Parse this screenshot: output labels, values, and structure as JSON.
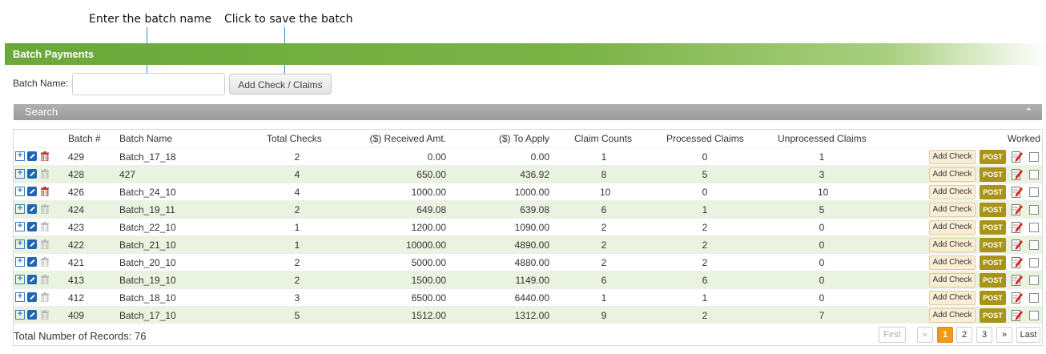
{
  "annotations": {
    "batch_name": "Enter the batch name",
    "save_batch": "Click to save the batch"
  },
  "panel": {
    "title": "Batch Payments",
    "batch_name_label": "Batch Name:",
    "batch_name_value": "",
    "batch_name_placeholder": "",
    "add_button": "Add Check / Claims"
  },
  "search": {
    "title": "Search",
    "toggle_glyph": "⌃"
  },
  "table": {
    "columns": {
      "batch_no": "Batch #",
      "batch_name": "Batch Name",
      "total_checks": "Total Checks",
      "received_amt": "($) Received Amt.",
      "to_apply": "($) To Apply",
      "claim_counts": "Claim Counts",
      "processed_claims": "Processed Claims",
      "unprocessed_claims": "Unprocessed Claims",
      "worked": "Worked"
    },
    "row_actions": {
      "add_check": "Add Check",
      "post": "POST"
    },
    "rows": [
      {
        "batch": "429",
        "name": "Batch_17_18",
        "checks": "2",
        "received": "0.00",
        "apply": "0.00",
        "claims": "1",
        "processed": "0",
        "unprocessed": "1",
        "delete_enabled": true
      },
      {
        "batch": "428",
        "name": "427",
        "checks": "4",
        "received": "650.00",
        "apply": "436.92",
        "claims": "8",
        "processed": "5",
        "unprocessed": "3",
        "delete_enabled": false
      },
      {
        "batch": "426",
        "name": "Batch_24_10",
        "checks": "4",
        "received": "1000.00",
        "apply": "1000.00",
        "claims": "10",
        "processed": "0",
        "unprocessed": "10",
        "delete_enabled": true
      },
      {
        "batch": "424",
        "name": "Batch_19_11",
        "checks": "2",
        "received": "649.08",
        "apply": "639.08",
        "claims": "6",
        "processed": "1",
        "unprocessed": "5",
        "delete_enabled": false
      },
      {
        "batch": "423",
        "name": "Batch_22_10",
        "checks": "1",
        "received": "1200.00",
        "apply": "1090.00",
        "claims": "2",
        "processed": "2",
        "unprocessed": "0",
        "delete_enabled": false
      },
      {
        "batch": "422",
        "name": "Batch_21_10",
        "checks": "1",
        "received": "10000.00",
        "apply": "4890.00",
        "claims": "2",
        "processed": "2",
        "unprocessed": "0",
        "delete_enabled": false
      },
      {
        "batch": "421",
        "name": "Batch_20_10",
        "checks": "2",
        "received": "5000.00",
        "apply": "4880.00",
        "claims": "2",
        "processed": "2",
        "unprocessed": "0",
        "delete_enabled": false
      },
      {
        "batch": "413",
        "name": "Batch_19_10",
        "checks": "2",
        "received": "1500.00",
        "apply": "1149.00",
        "claims": "6",
        "processed": "6",
        "unprocessed": "0",
        "delete_enabled": false
      },
      {
        "batch": "412",
        "name": "Batch_18_10",
        "checks": "3",
        "received": "6500.00",
        "apply": "6440.00",
        "claims": "1",
        "processed": "1",
        "unprocessed": "0",
        "delete_enabled": false
      },
      {
        "batch": "409",
        "name": "Batch_17_10",
        "checks": "5",
        "received": "1512.00",
        "apply": "1312.00",
        "claims": "9",
        "processed": "2",
        "unprocessed": "7",
        "delete_enabled": false
      }
    ],
    "total_label": "Total Number of Records: 76"
  },
  "pagination": {
    "first": "First",
    "prev": "«",
    "pages": [
      "1",
      "2",
      "3"
    ],
    "current": "1",
    "next": "»",
    "last": "Last"
  },
  "colors": {
    "header_green": "#7bb347",
    "row_alt": "#eaf3df",
    "post_button": "#a99419",
    "active_page": "#f39a1e",
    "delete_active": "#b03a2e",
    "delete_disabled": "#b8b8b8"
  }
}
